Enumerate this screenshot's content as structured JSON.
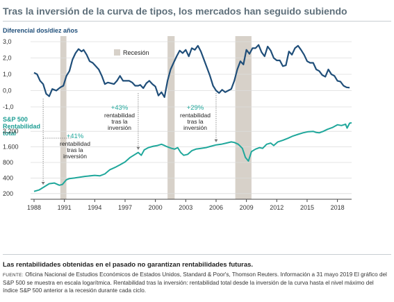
{
  "title": "Tras la inversión de la curva de tipos, los mercados han seguido subiendo",
  "disclaimer": "Las rentabilidades obtenidas en el pasado no garantizan rentabilidades futuras.",
  "source_label": "FUENTE:",
  "source_text": "Oficina Nacional de Estudios Económicos de Estados Unidos, Standard & Poor's, Thomson Reuters. Información a 31 mayo 2019 El gráfico del S&P 500 se muestra en escala logarítmica. Rentabilidad tras la inversión: rentabilidad total desde la inversión de la curva hasta el nivel máximo del índice S&P 500 anterior a la recesión durante cada ciclo.",
  "colors": {
    "spread": "#1f4e79",
    "sp500": "#1fa79b",
    "recession": "#d7d1c9",
    "grid": "#dcdcdc"
  },
  "chart_data": {
    "type": "line",
    "x_ticks": [
      "1988",
      "1991",
      "1994",
      "1997",
      "2000",
      "2003",
      "2006",
      "2009",
      "2012",
      "2015",
      "2018"
    ],
    "xlim": [
      1988,
      2019.4
    ],
    "legend": {
      "label": "Recesión",
      "position": "top"
    },
    "recessions": [
      [
        1990.6,
        1991.2
      ],
      [
        2001.2,
        2001.9
      ],
      [
        2007.9,
        2009.5
      ]
    ],
    "spread_axis": {
      "label": "Diferencial dos/diez años",
      "ticks": [
        "3,0",
        "2,0",
        "1,0",
        "0,0",
        "-1,0"
      ],
      "tick_values": [
        3,
        2,
        1,
        0,
        -1
      ],
      "ylim": [
        -1,
        3
      ]
    },
    "sp500_axis": {
      "label_line1": "S&P 500",
      "label_line2": "Rentabilidad",
      "label_line3": "total",
      "ticks": [
        "3.200",
        "1.600",
        "800",
        "400",
        "200"
      ],
      "tick_values": [
        3200,
        1600,
        800,
        400,
        200
      ],
      "scale": "log",
      "ylim": [
        160,
        4000
      ]
    },
    "series": [
      {
        "name": "Diferencial dos/diez años",
        "x": [
          1988.0,
          1988.3,
          1988.6,
          1988.9,
          1989.2,
          1989.5,
          1989.8,
          1990.2,
          1990.6,
          1990.9,
          1991.2,
          1991.5,
          1991.8,
          1992.1,
          1992.4,
          1992.7,
          1992.9,
          1993.2,
          1993.5,
          1993.8,
          1994.1,
          1994.4,
          1994.7,
          1995.0,
          1995.3,
          1995.6,
          1995.9,
          1996.2,
          1996.5,
          1996.8,
          1997.1,
          1997.4,
          1997.7,
          1998.0,
          1998.3,
          1998.5,
          1998.8,
          1999.1,
          1999.4,
          1999.7,
          2000.0,
          2000.3,
          2000.6,
          2000.9,
          2001.2,
          2001.5,
          2001.8,
          2002.1,
          2002.4,
          2002.7,
          2003.0,
          2003.3,
          2003.6,
          2003.9,
          2004.2,
          2004.5,
          2004.8,
          2005.1,
          2005.4,
          2005.7,
          2006.0,
          2006.3,
          2006.6,
          2006.9,
          2007.2,
          2007.5,
          2007.8,
          2008.1,
          2008.4,
          2008.7,
          2009.0,
          2009.3,
          2009.6,
          2009.9,
          2010.2,
          2010.5,
          2010.8,
          2011.1,
          2011.4,
          2011.7,
          2012.0,
          2012.3,
          2012.6,
          2012.9,
          2013.2,
          2013.5,
          2013.8,
          2014.1,
          2014.4,
          2014.7,
          2015.0,
          2015.3,
          2015.6,
          2015.9,
          2016.2,
          2016.5,
          2016.8,
          2017.1,
          2017.4,
          2017.7,
          2018.0,
          2018.3,
          2018.6,
          2018.9,
          2019.2
        ],
        "y": [
          1.1,
          1.0,
          0.6,
          0.4,
          -0.2,
          -0.35,
          0.1,
          0.0,
          0.2,
          0.3,
          0.9,
          1.2,
          1.9,
          2.3,
          2.55,
          2.4,
          2.5,
          2.2,
          1.8,
          1.7,
          1.5,
          1.3,
          0.9,
          0.4,
          0.5,
          0.45,
          0.4,
          0.6,
          0.9,
          0.6,
          0.6,
          0.6,
          0.5,
          0.3,
          0.3,
          0.35,
          0.15,
          0.45,
          0.6,
          0.4,
          0.25,
          -0.3,
          -0.1,
          -0.4,
          0.6,
          1.3,
          1.7,
          2.1,
          2.45,
          2.3,
          2.5,
          2.1,
          2.6,
          2.5,
          2.75,
          2.4,
          1.9,
          1.4,
          0.9,
          0.3,
          0.0,
          -0.15,
          0.05,
          -0.1,
          0.0,
          0.1,
          0.6,
          1.3,
          1.8,
          1.6,
          2.5,
          2.25,
          2.6,
          2.6,
          2.8,
          2.35,
          2.1,
          2.7,
          2.45,
          2.0,
          1.85,
          1.85,
          1.5,
          1.55,
          2.4,
          2.2,
          2.6,
          2.75,
          2.5,
          2.2,
          1.8,
          1.7,
          1.7,
          1.3,
          1.2,
          0.95,
          0.85,
          1.3,
          1.0,
          0.9,
          0.6,
          0.55,
          0.3,
          0.2,
          0.18
        ]
      },
      {
        "name": "S&P 500 Rentabilidad total",
        "x": [
          1988.0,
          1988.5,
          1989.0,
          1989.5,
          1990.0,
          1990.5,
          1990.8,
          1991.2,
          1991.5,
          1992.0,
          1993.0,
          1994.0,
          1994.5,
          1995.0,
          1995.5,
          1996.0,
          1996.5,
          1997.0,
          1997.5,
          1998.0,
          1998.3,
          1998.6,
          1998.9,
          1999.3,
          1999.8,
          2000.2,
          2000.6,
          2000.9,
          2001.2,
          2001.6,
          2001.9,
          2002.2,
          2002.5,
          2002.8,
          2003.2,
          2003.6,
          2004.0,
          2004.5,
          2005.0,
          2005.5,
          2006.0,
          2006.5,
          2007.0,
          2007.5,
          2007.8,
          2008.2,
          2008.6,
          2008.9,
          2009.2,
          2009.5,
          2009.9,
          2010.3,
          2010.6,
          2011.0,
          2011.4,
          2011.7,
          2012.1,
          2012.6,
          2013.1,
          2013.6,
          2014.1,
          2014.6,
          2015.1,
          2015.6,
          2015.9,
          2016.2,
          2016.6,
          2017.0,
          2017.5,
          2018.0,
          2018.4,
          2018.8,
          2018.95,
          2019.2,
          2019.4
        ],
        "y": [
          220,
          235,
          270,
          310,
          320,
          290,
          300,
          370,
          390,
          400,
          430,
          450,
          440,
          480,
          580,
          640,
          720,
          820,
          1000,
          1150,
          1250,
          1100,
          1400,
          1550,
          1650,
          1700,
          1800,
          1700,
          1600,
          1500,
          1450,
          1550,
          1250,
          1100,
          1150,
          1350,
          1450,
          1500,
          1550,
          1650,
          1750,
          1800,
          1900,
          2000,
          1950,
          1800,
          1500,
          1000,
          850,
          1300,
          1450,
          1550,
          1500,
          1800,
          1900,
          1700,
          2000,
          2150,
          2350,
          2600,
          2800,
          3000,
          3150,
          3200,
          3050,
          3000,
          3200,
          3500,
          3800,
          4300,
          4150,
          4400,
          3700,
          4600,
          4700
        ]
      }
    ],
    "annotations": [
      {
        "pct": "+41%",
        "line1": "rentabilidad",
        "line2": "tras la",
        "line3": "inversión",
        "x": 1988.9
      },
      {
        "pct": "+43%",
        "line1": "rentabilidad",
        "line2": "tras la",
        "line3": "inversión",
        "x": 1998.3
      },
      {
        "pct": "+29%",
        "line1": "rentabilidad",
        "line2": "tras la",
        "line3": "inversión",
        "x": 2006.0
      }
    ]
  }
}
